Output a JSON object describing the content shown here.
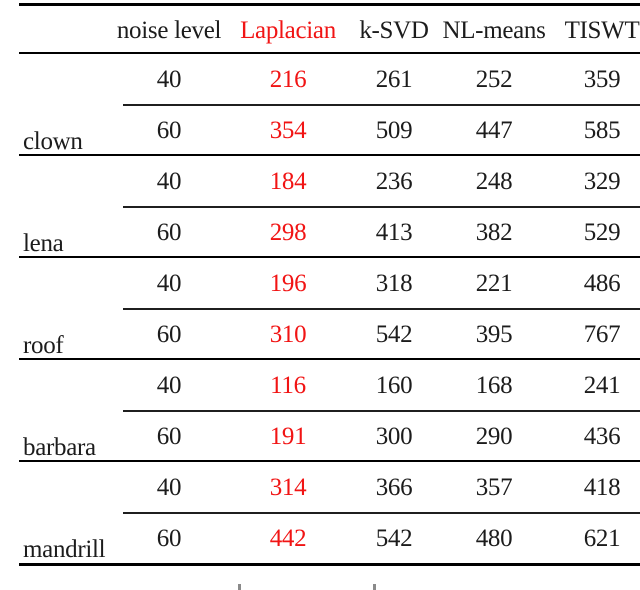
{
  "table": {
    "description": "Denoising comparison table (method vs noise level per test image)",
    "colors": {
      "highlight_red": "#f11414",
      "text": "#1c1c1c",
      "rule": "#000000"
    },
    "headers": [
      {
        "label": "noise level",
        "highlight": false
      },
      {
        "label": "Laplacian",
        "highlight": true
      },
      {
        "label": "k-SVD",
        "highlight": false
      },
      {
        "label": "NL-means",
        "highlight": false
      },
      {
        "label": "TISWT",
        "highlight": false
      }
    ],
    "groups": [
      {
        "label": "clown",
        "rows": [
          [
            "40",
            "216",
            "261",
            "252",
            "359"
          ],
          [
            "60",
            "354",
            "509",
            "447",
            "585"
          ]
        ]
      },
      {
        "label": "lena",
        "rows": [
          [
            "40",
            "184",
            "236",
            "248",
            "329"
          ],
          [
            "60",
            "298",
            "413",
            "382",
            "529"
          ]
        ]
      },
      {
        "label": "roof",
        "rows": [
          [
            "40",
            "196",
            "318",
            "221",
            "486"
          ],
          [
            "60",
            "310",
            "542",
            "395",
            "767"
          ]
        ]
      },
      {
        "label": "barbara",
        "rows": [
          [
            "40",
            "116",
            "160",
            "168",
            "241"
          ],
          [
            "60",
            "191",
            "300",
            "290",
            "436"
          ]
        ]
      },
      {
        "label": "mandrill",
        "rows": [
          [
            "40",
            "314",
            "366",
            "357",
            "418"
          ],
          [
            "60",
            "442",
            "542",
            "480",
            "621"
          ]
        ]
      }
    ]
  }
}
